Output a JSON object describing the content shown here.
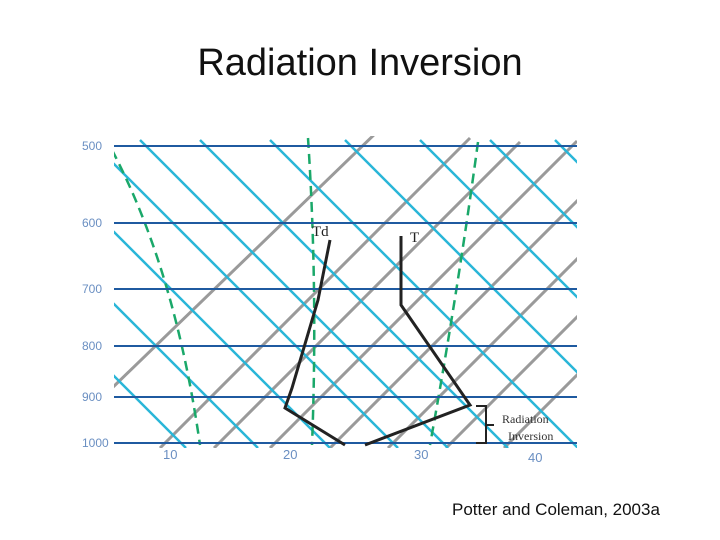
{
  "slide": {
    "title": "Radiation Inversion",
    "citation": "Potter and Coleman, 2003a"
  },
  "diagram": {
    "pressure_labels": [
      "500",
      "600",
      "700",
      "800",
      "900",
      "1000"
    ],
    "temperature_labels": [
      "10",
      "20",
      "30",
      "40"
    ],
    "temperature_curve_label": "T",
    "dewpoint_curve_label": "Td",
    "annotation_line1": "Radiation",
    "annotation_line2": "Inversion"
  },
  "colors": {
    "isobar": "#1f5aa0",
    "isotherm": "#9a9a9a",
    "dry_adiabat": "#29b6d8",
    "moist_adiabat": "#1aa86a",
    "sounding": "#222222"
  }
}
